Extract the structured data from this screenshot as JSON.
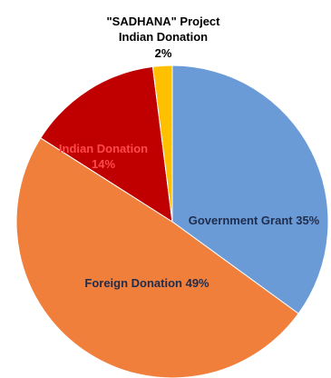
{
  "chart_data": {
    "type": "pie",
    "title": "",
    "slices": [
      {
        "label": "Government Grant",
        "value": 35,
        "display": "Government Grant 35%",
        "color": "#6b9bd6"
      },
      {
        "label": "Foreign Donation",
        "value": 49,
        "display": "Foreign Donation 49%",
        "color": "#f07f3c"
      },
      {
        "label": "Indian Donation",
        "value": 14,
        "display_lines": [
          "Indian Donation",
          "14%"
        ],
        "color": "#c00000"
      },
      {
        "label": "\"SADHANA\" Project Indian Donation",
        "value": 2,
        "display_lines": [
          "\"SADHANA\" Project",
          "Indian Donation",
          "2%"
        ],
        "color": "#ffc000"
      }
    ]
  }
}
